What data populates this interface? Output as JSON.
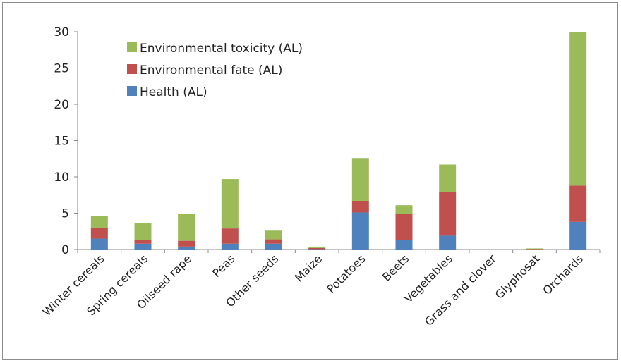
{
  "chart_data": {
    "type": "bar",
    "stacked": true,
    "title": "",
    "xlabel": "",
    "ylabel": "",
    "ylim": [
      0,
      30
    ],
    "yticks": [
      0,
      5,
      10,
      15,
      20,
      25,
      30
    ],
    "grid": false,
    "legend_position": "top-left",
    "categories": [
      "Winter cereals",
      "Spring cereals",
      "Oilseed rape",
      "Peas",
      "Other seeds",
      "Maize",
      "Potatoes",
      "Beets",
      "Vegetables",
      "Grass and clover",
      "Glyphosat",
      "Orchards"
    ],
    "series": [
      {
        "name": "Health (AL)",
        "color": "#4f81bd",
        "values": [
          1.5,
          0.8,
          0.4,
          0.8,
          0.8,
          0.05,
          5.1,
          1.3,
          1.9,
          0.0,
          0.0,
          3.8
        ]
      },
      {
        "name": "Environmental fate (AL)",
        "color": "#c0504d",
        "values": [
          1.5,
          0.5,
          0.8,
          2.1,
          0.6,
          0.15,
          1.6,
          3.6,
          6.0,
          0.0,
          0.05,
          5.0
        ]
      },
      {
        "name": "Environmental toxicity (AL)",
        "color": "#9bbb59",
        "values": [
          1.6,
          2.3,
          3.7,
          6.8,
          1.2,
          0.2,
          5.9,
          1.2,
          3.8,
          0.0,
          0.1,
          21.2
        ]
      }
    ],
    "legend_order": [
      "Environmental toxicity (AL)",
      "Environmental fate (AL)",
      "Health (AL)"
    ]
  }
}
